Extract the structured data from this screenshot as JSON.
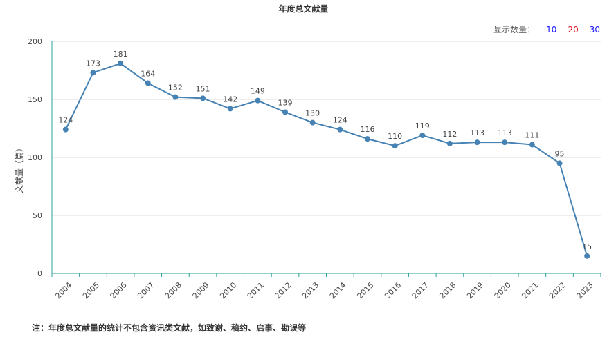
{
  "chart_data": {
    "type": "line",
    "title": "年度总文献量",
    "ylabel": "文献量（篇）",
    "xlabel": "",
    "categories": [
      "2004",
      "2005",
      "2006",
      "2007",
      "2008",
      "2009",
      "2010",
      "2011",
      "2012",
      "2013",
      "2014",
      "2015",
      "2016",
      "2017",
      "2018",
      "2019",
      "2020",
      "2021",
      "2022",
      "2023"
    ],
    "values": [
      124,
      173,
      181,
      164,
      152,
      151,
      142,
      149,
      139,
      130,
      124,
      116,
      110,
      119,
      112,
      113,
      113,
      111,
      95,
      15
    ],
    "ylim": [
      0,
      200
    ],
    "yticks": [
      "0",
      "50",
      "100",
      "150",
      "200"
    ],
    "grid": true,
    "line_color": "#4682b4",
    "axis_color": "#2aa198"
  },
  "controls": {
    "display_label": "显示数量：",
    "options": [
      {
        "label": "10",
        "color": "#1a1aff"
      },
      {
        "label": "20",
        "color": "#e0141e"
      },
      {
        "label": "30",
        "color": "#1a1aff"
      }
    ]
  },
  "footnote": "注：年度总文献量的统计不包含资讯类文献，如致谢、稿约、启事、勘误等"
}
